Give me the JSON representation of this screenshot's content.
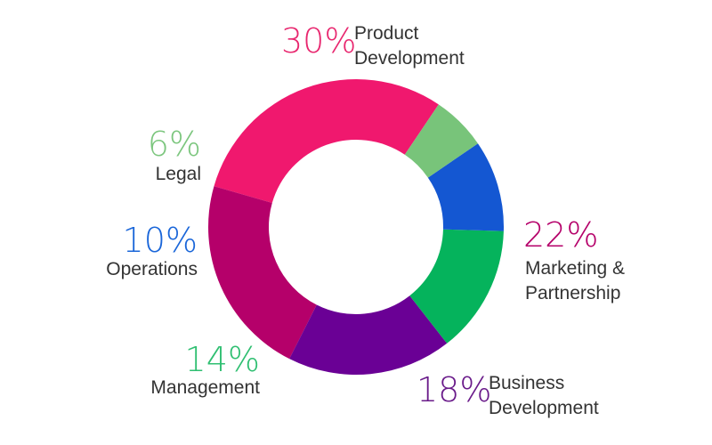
{
  "chart_data": {
    "type": "pie",
    "donut": true,
    "title": "",
    "slices": [
      {
        "label": "Product Development",
        "value": 30,
        "value_label": "30%",
        "label_lines": [
          "Product",
          "Development"
        ],
        "color": "#f0186e",
        "text_color": "#e8276f"
      },
      {
        "label": "Marketing & Partnership",
        "value": 22,
        "value_label": "22%",
        "label_lines": [
          "Marketing &",
          "Partnership"
        ],
        "color": "#b5006a",
        "text_color": "#b5006a"
      },
      {
        "label": "Business Development",
        "value": 18,
        "value_label": "18%",
        "label_lines": [
          "Business",
          "Development"
        ],
        "color": "#6a0095",
        "text_color": "#6a1b8a"
      },
      {
        "label": "Management",
        "value": 14,
        "value_label": "14%",
        "label_lines": [
          "Management"
        ],
        "color": "#05b35c",
        "text_color": "#2fbf71"
      },
      {
        "label": "Operations",
        "value": 10,
        "value_label": "10%",
        "label_lines": [
          "Operations"
        ],
        "color": "#1457d2",
        "text_color": "#1a66d9"
      },
      {
        "label": "Legal",
        "value": 6,
        "value_label": "6%",
        "label_lines": [
          "Legal"
        ],
        "color": "#78c47a",
        "text_color": "#7cc67e"
      }
    ]
  }
}
